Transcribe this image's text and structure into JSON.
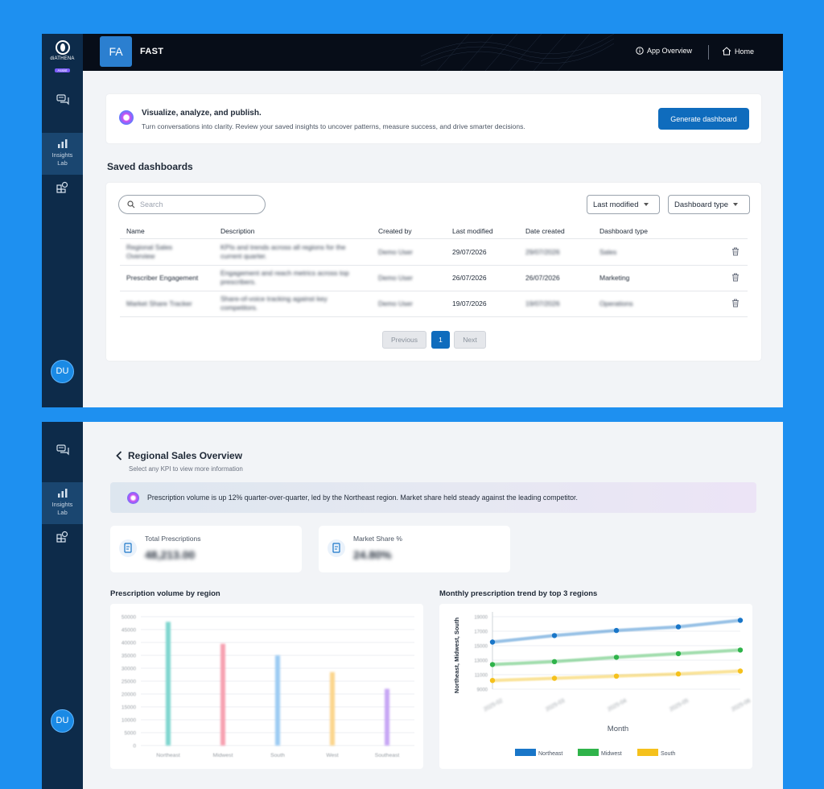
{
  "brand": {
    "name": "diATHENA",
    "badge": "Assist"
  },
  "sidebar": {
    "items": [
      {
        "label": ""
      },
      {
        "label_line1": "Insights",
        "label_line2": "Lab"
      },
      {
        "label": ""
      }
    ],
    "user_initials": "DU"
  },
  "header": {
    "app_initials": "FA",
    "app_name": "FAST",
    "nav": [
      {
        "label": "App Overview"
      },
      {
        "label": "Home"
      }
    ]
  },
  "hero": {
    "title": "Visualize, analyze, and publish.",
    "subtitle": "Turn conversations into clarity. Review your saved insights to uncover patterns, measure success, and drive smarter decisions.",
    "cta": "Generate dashboard"
  },
  "saved": {
    "title": "Saved dashboards",
    "search_placeholder": "Search",
    "filters": [
      {
        "label": "Last modified"
      },
      {
        "label": "Dashboard type"
      }
    ],
    "columns": [
      "Name",
      "Description",
      "Created by",
      "Last modified",
      "Date created",
      "Dashboard type"
    ],
    "rows": [
      {
        "name": "Regional Sales Overview",
        "description": "KPIs and trends across all regions for the current quarter.",
        "created_by": "Demo User",
        "last_modified": "29/07/2026",
        "date_created": "29/07/2026",
        "type": "Sales"
      },
      {
        "name": "Prescriber Engagement",
        "description": "Engagement and reach metrics across top prescribers.",
        "created_by": "Demo User",
        "last_modified": "26/07/2026",
        "date_created": "26/07/2026",
        "type": "Marketing"
      },
      {
        "name": "Market Share Tracker",
        "description": "Share-of-voice tracking against key competitors.",
        "created_by": "Demo User",
        "last_modified": "19/07/2026",
        "date_created": "19/07/2026",
        "type": "Operations"
      }
    ],
    "pagination": {
      "previous": "Previous",
      "current": "1",
      "next": "Next"
    }
  },
  "detail": {
    "title": "Regional Sales Overview",
    "subtitle": "Select any KPI to view more information",
    "insight": "Prescription volume is up 12% quarter-over-quarter, led by the Northeast region. Market share held steady against the leading competitor.",
    "kpis": [
      {
        "label": "Total Prescriptions",
        "value": "48,213.00"
      },
      {
        "label": "Market Share %",
        "value": "24.80%"
      }
    ]
  },
  "chart_data": [
    {
      "type": "bar",
      "title": "Prescription volume by region",
      "categories": [
        "Northeast",
        "Midwest",
        "South",
        "West",
        "Southeast"
      ],
      "values": [
        48000,
        39500,
        35000,
        28500,
        22000
      ],
      "colors": [
        "#7fd6cf",
        "#f7a1b1",
        "#9ccbf3",
        "#fbd58d",
        "#c7a6f5"
      ],
      "yticks": [
        "0",
        "5000",
        "10000",
        "15000",
        "20000",
        "25000",
        "30000",
        "35000",
        "40000",
        "45000",
        "50000"
      ],
      "ylim": [
        0,
        50000
      ]
    },
    {
      "type": "line",
      "title": "Monthly prescription trend by top 3 regions",
      "xlabel": "Month",
      "ylabel": "Northeast, Midwest, South",
      "x": [
        "2025-02",
        "2025-03",
        "2025-04",
        "2025-05",
        "2025-06"
      ],
      "yticks": [
        "9000",
        "11000",
        "13000",
        "15000",
        "17000",
        "19000"
      ],
      "ylim": [
        9000,
        19000
      ],
      "series": [
        {
          "name": "Northeast",
          "color": "#1976c8",
          "values": [
            15500,
            16400,
            17100,
            17600,
            18500
          ]
        },
        {
          "name": "Midwest",
          "color": "#2fb34a",
          "values": [
            12400,
            12800,
            13400,
            13900,
            14400
          ]
        },
        {
          "name": "South",
          "color": "#f5c11c",
          "values": [
            10200,
            10500,
            10800,
            11100,
            11500
          ]
        }
      ]
    }
  ]
}
